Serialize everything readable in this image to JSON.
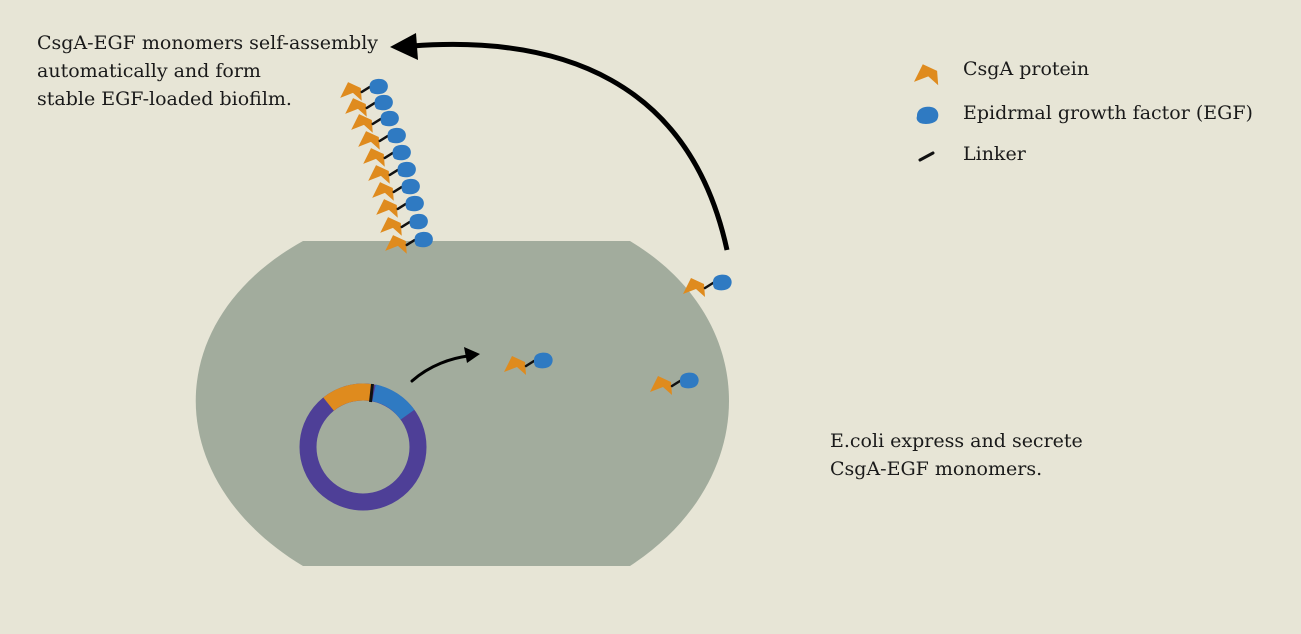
{
  "assembly_caption": {
    "line1": "CsgA-EGF monomers self-assembly",
    "line2": "automatically and form",
    "line3": "stable EGF-loaded biofilm."
  },
  "secretion_caption": {
    "line1": "E.coli express and secrete",
    "line2": "CsgA-EGF monomers."
  },
  "legend": {
    "csga": "CsgA protein",
    "egf": "Epidrmal growth factor (EGF)",
    "linker": "Linker"
  },
  "colors": {
    "background": "#e7e5d6",
    "cell": "#a2ac9d",
    "csga": "#df8b1e",
    "egf": "#2f7ac2",
    "plasmid": "#4e3f97",
    "linker": "#111111"
  },
  "icons": [
    "csga-protein-icon",
    "egf-icon",
    "linker-icon"
  ]
}
